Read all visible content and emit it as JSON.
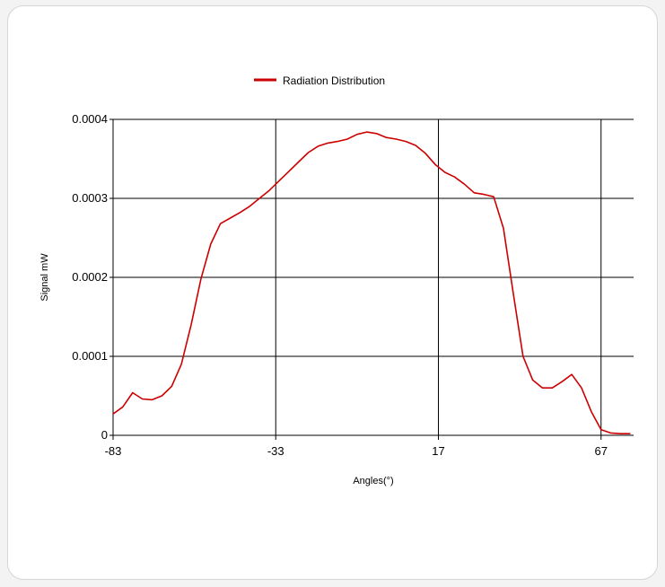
{
  "chart_data": {
    "type": "line",
    "title": "",
    "xlabel": "Angles(°)",
    "ylabel": "Signal mW",
    "xlim": [
      -83,
      77
    ],
    "ylim": [
      0,
      0.0004
    ],
    "x_ticks": [
      "-83",
      "-33",
      "17",
      "67"
    ],
    "y_ticks": [
      "0",
      "0.0001",
      "0.0002",
      "0.0003",
      "0.0004"
    ],
    "grid": true,
    "legend": "top-center",
    "series": [
      {
        "name": "Radiation Distribution",
        "color": "#cc0000",
        "x": [
          -83,
          -80,
          -77,
          -74,
          -71,
          -68,
          -65,
          -62,
          -59,
          -56,
          -53,
          -50,
          -47,
          -44,
          -41,
          -38,
          -35,
          -32,
          -29,
          -26,
          -23,
          -20,
          -17,
          -14,
          -11,
          -8,
          -5,
          -2,
          1,
          4,
          7,
          10,
          13,
          16,
          19,
          22,
          25,
          28,
          31,
          34,
          37,
          40,
          43,
          46,
          49,
          52,
          55,
          58,
          61,
          64,
          67,
          70,
          73,
          76
        ],
        "y": [
          2.7e-05,
          3.6e-05,
          5.4e-05,
          4.6e-05,
          4.5e-05,
          5e-05,
          6.2e-05,
          9e-05,
          0.00014,
          0.000198,
          0.000242,
          0.000268,
          0.000275,
          0.000282,
          0.00029,
          0.0003,
          0.00031,
          0.000322,
          0.000334,
          0.000346,
          0.000358,
          0.000366,
          0.00037,
          0.000372,
          0.000375,
          0.000381,
          0.000384,
          0.000382,
          0.000377,
          0.000375,
          0.000372,
          0.000367,
          0.000357,
          0.000343,
          0.000333,
          0.000327,
          0.000318,
          0.000307,
          0.000305,
          0.000302,
          0.000262,
          0.00018,
          0.0001,
          7e-05,
          6e-05,
          6e-05,
          6.8e-05,
          7.7e-05,
          6e-05,
          3e-05,
          7e-06,
          3e-06,
          2e-06,
          2e-06
        ]
      }
    ]
  }
}
